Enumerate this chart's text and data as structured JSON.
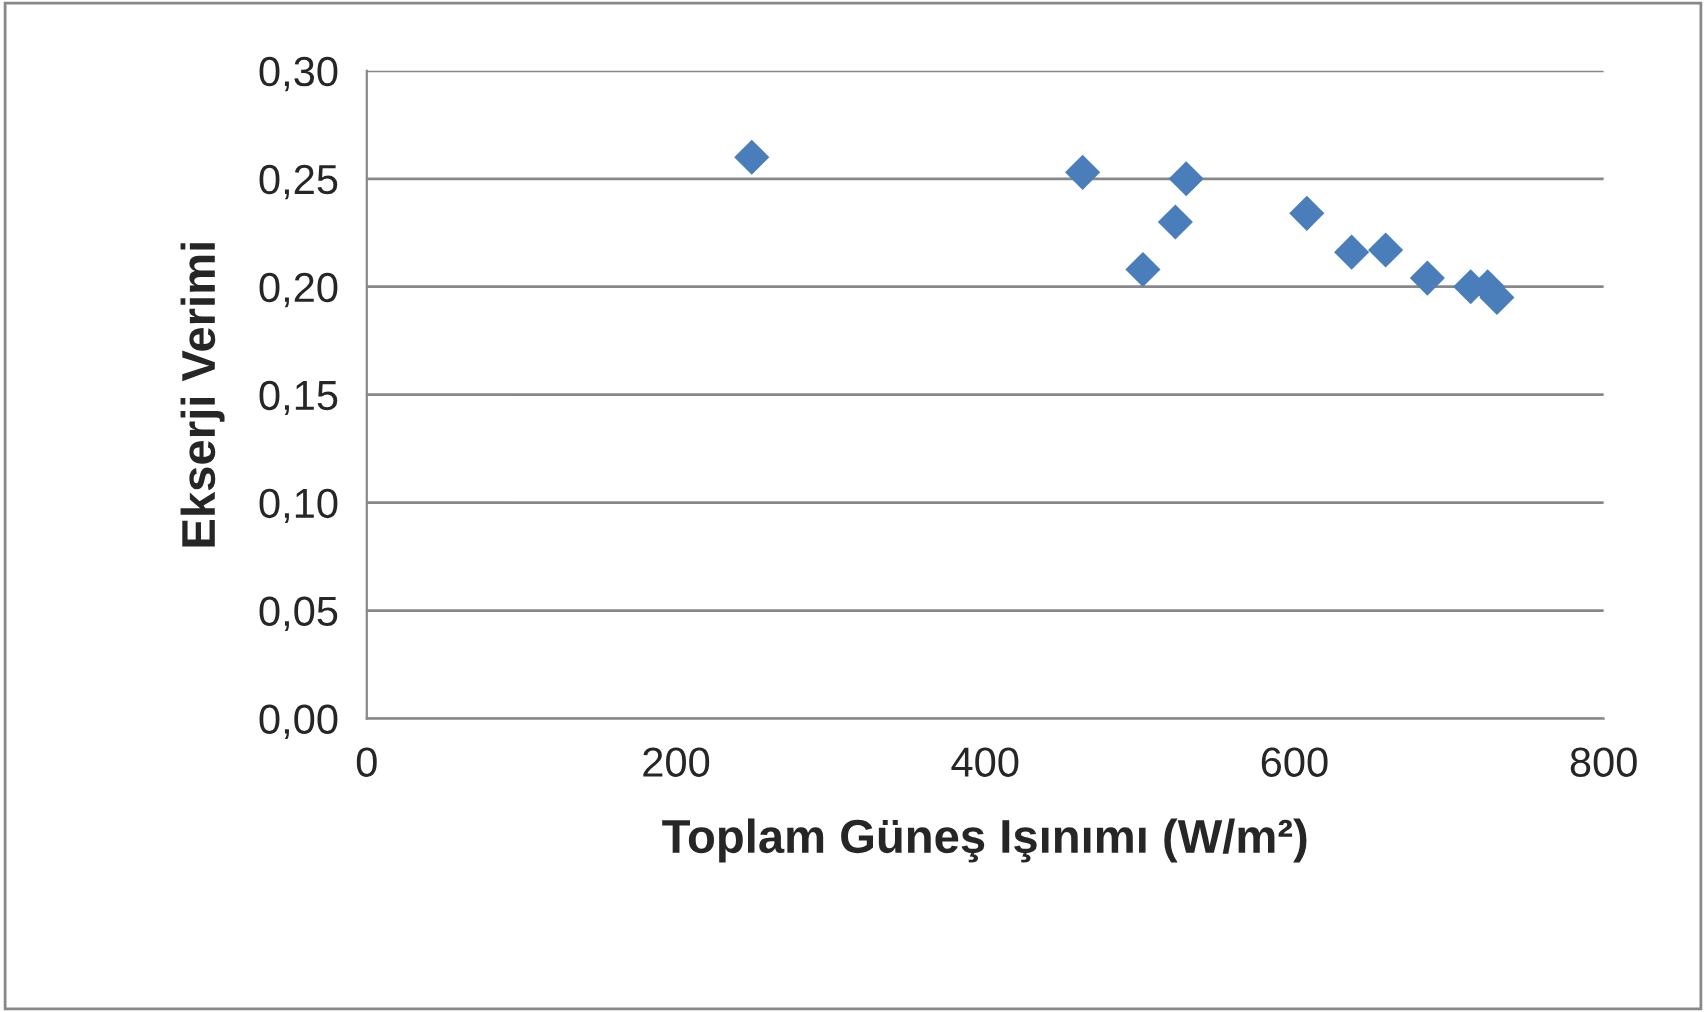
{
  "chart_data": {
    "type": "scatter",
    "xlabel": "Toplam Güneş Işınımı (W/m²)",
    "ylabel": "Ekserji Verimi",
    "xlim": [
      0,
      800
    ],
    "xticks": [
      0,
      200,
      400,
      600,
      800
    ],
    "ylim": [
      0,
      0.3
    ],
    "yticks": [
      {
        "value": 0,
        "label": "0,00"
      },
      {
        "value": 0.05,
        "label": "0,05"
      },
      {
        "value": 0.1,
        "label": "0,10"
      },
      {
        "value": 0.15,
        "label": "0,15"
      },
      {
        "value": 0.2,
        "label": "0,20"
      },
      {
        "value": 0.25,
        "label": "0,25"
      },
      {
        "value": 0.3,
        "label": "0,30"
      }
    ],
    "grid": "y",
    "marker": "diamond",
    "legend": false,
    "series": [
      {
        "color": "#4a7ebb",
        "x": [
          249,
          463,
          502,
          523,
          530,
          608,
          637,
          659,
          686,
          714,
          725,
          731
        ],
        "values": [
          0.26,
          0.253,
          0.208,
          0.23,
          0.25,
          0.234,
          0.216,
          0.217,
          0.204,
          0.2,
          0.2,
          0.195
        ]
      }
    ]
  }
}
